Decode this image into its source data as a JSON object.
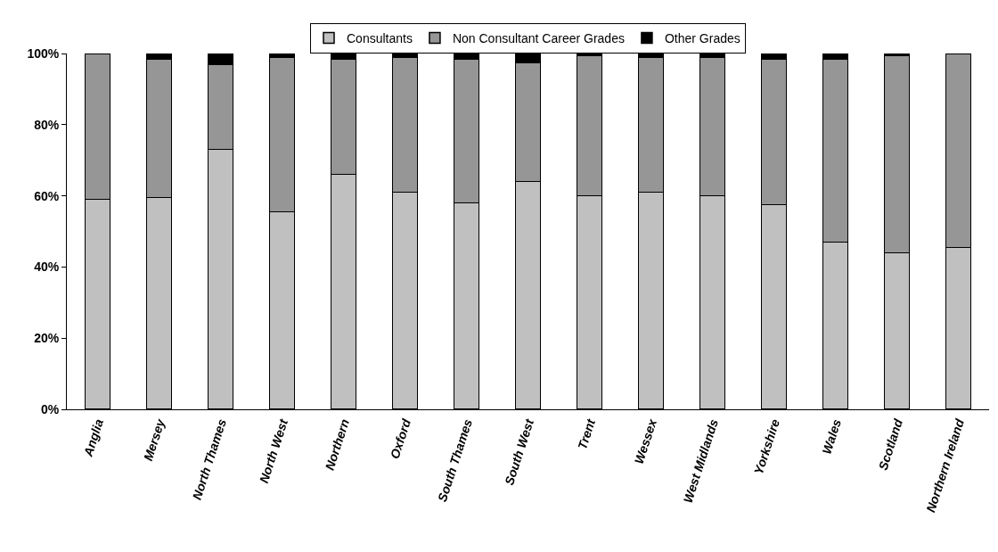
{
  "chart_data": {
    "type": "bar",
    "stacked": true,
    "categories": [
      "Anglia",
      "Mersey",
      "North Thames",
      "North West",
      "Northern",
      "Oxford",
      "South Thames",
      "South West",
      "Trent",
      "Wessex",
      "West Midlands",
      "Yorkshire",
      "Wales",
      "Scotland",
      "Northern Ireland"
    ],
    "series": [
      {
        "name": "Consultants",
        "color": "#c0c0c0",
        "values": [
          59,
          59.5,
          73,
          55.5,
          66,
          61,
          58,
          64,
          60,
          61,
          60,
          57.5,
          47,
          44,
          45.5
        ]
      },
      {
        "name": "Non Consultant Career Grades",
        "color": "#969696",
        "values": [
          41,
          39,
          24,
          43.5,
          32.5,
          38,
          40.5,
          33.5,
          39.5,
          38,
          39,
          41,
          51.5,
          55.5,
          54.5
        ]
      },
      {
        "name": "Other Grades",
        "color": "#000000",
        "values": [
          0,
          1.5,
          3,
          1,
          1.5,
          1,
          1.5,
          2.5,
          0.5,
          1,
          1,
          1.5,
          1.5,
          0.5,
          0
        ]
      }
    ],
    "ylim": [
      0,
      100
    ],
    "yticks": [
      {
        "value": 0,
        "label": "0%"
      },
      {
        "value": 20,
        "label": "20%"
      },
      {
        "value": 40,
        "label": "40%"
      },
      {
        "value": 60,
        "label": "60%"
      },
      {
        "value": 80,
        "label": "80%"
      },
      {
        "value": 100,
        "label": "100%"
      }
    ],
    "grid": false,
    "legend": "top"
  }
}
